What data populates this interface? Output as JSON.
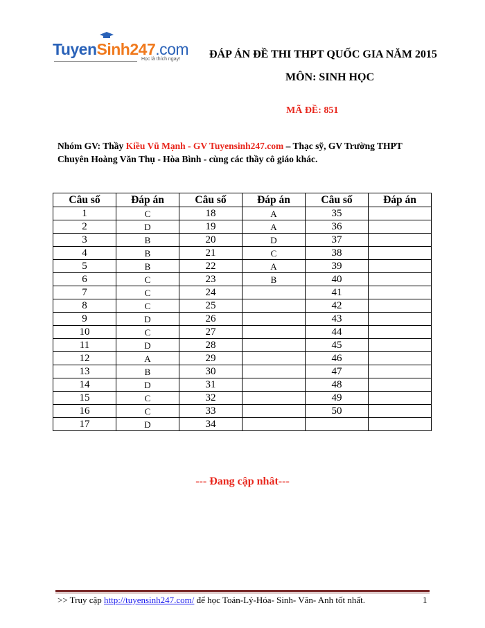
{
  "logo": {
    "part1": "Tuyen",
    "part2": "Sinh247",
    "part3": ".com",
    "tagline": "Học là thích ngay!"
  },
  "header": {
    "title": "ĐÁP ÁN ĐỀ THI THPT QUỐC GIA NĂM 2015",
    "subject": "MÔN: SINH HỌC",
    "exam_code": "MÃ ĐỀ:  851"
  },
  "intro": {
    "prefix": "Nhóm GV: Thầy ",
    "highlight": "Kiều Vũ Mạnh - GV Tuyensinh247.com",
    "suffix": " – Thạc sỹ, GV Trường THPT Chuyên Hoàng Văn Thụ - Hòa Bình - cùng các thầy cô giáo khác."
  },
  "table": {
    "headers": [
      "Câu số",
      "Đáp án",
      "Câu số",
      "Đáp án",
      "Câu số",
      "Đáp án"
    ],
    "rows": [
      [
        "1",
        "C",
        "18",
        "A",
        "35",
        ""
      ],
      [
        "2",
        "D",
        "19",
        "A",
        "36",
        ""
      ],
      [
        "3",
        "B",
        "20",
        "D",
        "37",
        ""
      ],
      [
        "4",
        "B",
        "21",
        "C",
        "38",
        ""
      ],
      [
        "5",
        "B",
        "22",
        "A",
        "39",
        ""
      ],
      [
        "6",
        "C",
        "23",
        "B",
        "40",
        ""
      ],
      [
        "7",
        "C",
        "24",
        "",
        "41",
        ""
      ],
      [
        "8",
        "C",
        "25",
        "",
        "42",
        ""
      ],
      [
        "9",
        "D",
        "26",
        "",
        "43",
        ""
      ],
      [
        "10",
        "C",
        "27",
        "",
        "44",
        ""
      ],
      [
        "11",
        "D",
        "28",
        "",
        "45",
        ""
      ],
      [
        "12",
        "A",
        "29",
        "",
        "46",
        ""
      ],
      [
        "13",
        "B",
        "30",
        "",
        "47",
        ""
      ],
      [
        "14",
        "D",
        "31",
        "",
        "48",
        ""
      ],
      [
        "15",
        "C",
        "32",
        "",
        "49",
        ""
      ],
      [
        "16",
        "C",
        "33",
        "",
        "50",
        ""
      ],
      [
        "17",
        "D",
        "34",
        "",
        "",
        ""
      ]
    ]
  },
  "status": "--- Đang cập nhât---",
  "footer": {
    "prefix": ">> Truy cập  ",
    "link": "http://tuyensinh247.com/",
    "suffix": " để học Toán-Lý-Hóa- Sinh- Văn- Anh tốt nhất.",
    "page": "1"
  }
}
